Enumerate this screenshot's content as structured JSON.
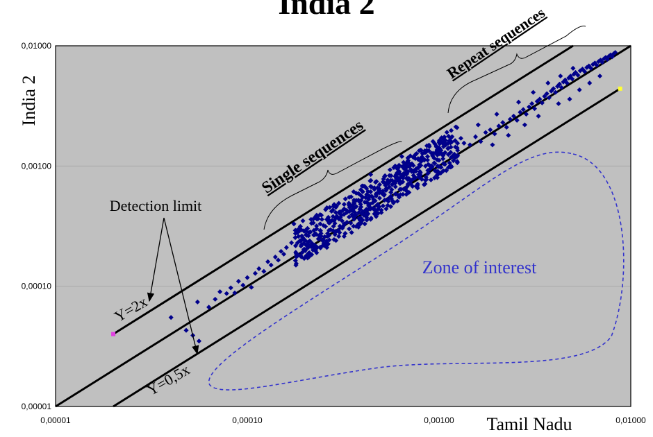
{
  "chart_data": {
    "type": "scatter",
    "title": "India 2",
    "xlabel": "Tamil Nadu",
    "ylabel": "India 2",
    "x_scale": "log",
    "y_scale": "log",
    "xlim": [
      1e-05,
      0.01
    ],
    "ylim": [
      1e-05,
      0.01
    ],
    "x_tick_values": [
      1e-05,
      0.0001,
      0.001,
      0.01
    ],
    "x_tick_labels": [
      "0,00001",
      "0,00010",
      "0,00100",
      "0,01000"
    ],
    "y_tick_values": [
      1e-05,
      0.0001,
      0.001,
      0.01
    ],
    "y_tick_labels": [
      "0,00001",
      "0,00010",
      "0,00100",
      "0,01000"
    ],
    "grid": "horizontal",
    "background_color": "#c0c0c0",
    "marker_color": "#00008b",
    "zone_color": "#3333cc",
    "lines": [
      {
        "label": "Y=2x",
        "slope": 2,
        "x_range": [
          2e-05,
          0.0066
        ]
      },
      {
        "label": "",
        "slope": 1,
        "x_range": [
          1e-05,
          0.01
        ]
      },
      {
        "label": "Y=0,5x",
        "slope": 0.5,
        "x_range": [
          2e-05,
          0.0088
        ]
      }
    ],
    "highlight_points": [
      {
        "x": 2e-05,
        "y": 4e-05,
        "color": "#e040e0"
      },
      {
        "x": 0.0088,
        "y": 0.0044,
        "color": "#ffff33"
      }
    ],
    "points_sparse": [
      [
        4e-05,
        5.5e-05
      ],
      [
        4.8e-05,
        4.3e-05
      ],
      [
        5.2e-05,
        3.9e-05
      ],
      [
        5.5e-05,
        7.4e-05
      ],
      [
        5.6e-05,
        3.5e-05
      ],
      [
        6.3e-05,
        6.7e-05
      ],
      [
        6.8e-05,
        7.8e-05
      ],
      [
        7.2e-05,
        9e-05
      ],
      [
        7.8e-05,
        8.7e-05
      ],
      [
        8.2e-05,
        9.7e-05
      ],
      [
        8.6e-05,
        8.8e-05
      ],
      [
        9e-05,
        0.00011
      ],
      [
        9.5e-05,
        0.000102
      ],
      [
        0.0001,
        0.000118
      ],
      [
        0.000105,
        9.8e-05
      ],
      [
        0.00011,
        0.000128
      ],
      [
        0.000115,
        0.00014
      ],
      [
        0.000122,
        0.000133
      ],
      [
        0.000128,
        0.00016
      ],
      [
        0.000133,
        0.00015
      ],
      [
        0.00014,
        0.000175
      ],
      [
        0.000145,
        0.000165
      ],
      [
        0.00015,
        0.000195
      ],
      [
        0.000155,
        0.000185
      ],
      [
        0.00016,
        0.00021
      ],
      [
        0.00017,
        0.00023
      ],
      [
        0.000175,
        0.00033
      ],
      [
        0.000185,
        0.00026
      ],
      [
        0.000195,
        0.00035
      ],
      [
        0.000205,
        0.0003
      ],
      [
        0.000215,
        0.00036
      ],
      [
        0.00023,
        0.00039
      ],
      [
        0.000245,
        0.00036
      ],
      [
        0.00026,
        0.00045
      ],
      [
        0.000275,
        0.00042
      ],
      [
        0.0003,
        0.00049
      ],
      [
        0.00032,
        0.00048
      ],
      [
        0.00034,
        0.00055
      ],
      [
        0.00036,
        0.00052
      ],
      [
        0.00038,
        0.00059
      ],
      [
        0.0004,
        0.00061
      ],
      [
        0.00042,
        0.00058
      ],
      [
        0.00044,
        0.00085
      ],
      [
        0.00046,
        0.00066
      ],
      [
        0.00049,
        0.0007
      ],
      [
        0.00052,
        0.00072
      ],
      [
        0.00056,
        0.00076
      ],
      [
        0.0006,
        0.0008
      ],
      [
        0.00064,
        0.00083
      ],
      [
        0.00068,
        0.00086
      ],
      [
        0.00072,
        0.0009
      ],
      [
        0.00076,
        0.00095
      ],
      [
        0.0008,
        0.00088
      ],
      [
        0.00085,
        0.001
      ],
      [
        0.0009,
        0.00095
      ],
      [
        0.00095,
        0.00105
      ],
      [
        0.00064,
        0.0012
      ],
      [
        0.0007,
        0.00105
      ],
      [
        0.00062,
        0.0009
      ],
      [
        0.00098,
        0.0008
      ],
      [
        0.00105,
        0.00125
      ],
      [
        0.00115,
        0.0013
      ],
      [
        0.00125,
        0.00135
      ],
      [
        0.00135,
        0.00155
      ],
      [
        0.00145,
        0.0015
      ],
      [
        0.00155,
        0.00175
      ],
      [
        0.00165,
        0.0016
      ],
      [
        0.00175,
        0.0019
      ],
      [
        0.00185,
        0.002
      ],
      [
        0.00195,
        0.00185
      ],
      [
        0.00205,
        0.00215
      ],
      [
        0.00215,
        0.0023
      ],
      [
        0.00225,
        0.0021
      ],
      [
        0.00235,
        0.00245
      ],
      [
        0.00245,
        0.0026
      ],
      [
        0.00255,
        0.0024
      ],
      [
        0.00265,
        0.0028
      ],
      [
        0.00275,
        0.00295
      ],
      [
        0.00285,
        0.0027
      ],
      [
        0.00295,
        0.0031
      ],
      [
        0.00305,
        0.0033
      ],
      [
        0.00315,
        0.003
      ],
      [
        0.00325,
        0.00345
      ],
      [
        0.00335,
        0.0036
      ],
      [
        0.00345,
        0.00335
      ],
      [
        0.00355,
        0.0038
      ],
      [
        0.00365,
        0.004
      ],
      [
        0.00375,
        0.0037
      ],
      [
        0.00385,
        0.0042
      ],
      [
        0.00395,
        0.0044
      ],
      [
        0.00405,
        0.0041
      ],
      [
        0.00415,
        0.0046
      ],
      [
        0.00425,
        0.0048
      ],
      [
        0.00435,
        0.0045
      ],
      [
        0.00445,
        0.005
      ],
      [
        0.00455,
        0.0052
      ],
      [
        0.00465,
        0.0049
      ],
      [
        0.00475,
        0.0054
      ],
      [
        0.00485,
        0.0056
      ],
      [
        0.00495,
        0.0053
      ],
      [
        0.00505,
        0.0058
      ],
      [
        0.00515,
        0.006
      ],
      [
        0.0053,
        0.0057
      ],
      [
        0.00545,
        0.0062
      ],
      [
        0.0056,
        0.0064
      ],
      [
        0.00575,
        0.0061
      ],
      [
        0.0059,
        0.0066
      ],
      [
        0.00605,
        0.0068
      ],
      [
        0.0062,
        0.0065
      ],
      [
        0.00635,
        0.007
      ],
      [
        0.0065,
        0.0072
      ],
      [
        0.00665,
        0.0069
      ],
      [
        0.0068,
        0.0074
      ],
      [
        0.00695,
        0.0076
      ],
      [
        0.0071,
        0.0073
      ],
      [
        0.00725,
        0.0078
      ],
      [
        0.0074,
        0.008
      ],
      [
        0.00755,
        0.0077
      ],
      [
        0.0077,
        0.0082
      ],
      [
        0.00785,
        0.0084
      ],
      [
        0.008,
        0.0081
      ],
      [
        0.00815,
        0.0086
      ],
      [
        0.0083,
        0.0088
      ],
      [
        0.0054,
        0.0043
      ],
      [
        0.0048,
        0.0036
      ],
      [
        0.0061,
        0.0049
      ],
      [
        0.0028,
        0.0022
      ],
      [
        0.0033,
        0.0026
      ],
      [
        0.0019,
        0.0015
      ],
      [
        0.0023,
        0.0018
      ],
      [
        0.0042,
        0.0033
      ],
      [
        0.0069,
        0.0056
      ],
      [
        0.0013,
        0.0017
      ],
      [
        0.0016,
        0.0022
      ],
      [
        0.002,
        0.0027
      ],
      [
        0.0026,
        0.0034
      ],
      [
        0.0031,
        0.0041
      ],
      [
        0.0037,
        0.0049
      ],
      [
        0.0043,
        0.0056
      ],
      [
        0.005,
        0.0065
      ]
    ],
    "dense_cluster": [
      [
        0.0002,
        0.00024
      ],
      [
        0.00021,
        0.00028
      ],
      [
        0.00022,
        0.0002
      ],
      [
        0.00023,
        0.0003
      ],
      [
        0.00024,
        0.00026
      ],
      [
        0.00025,
        0.00032
      ],
      [
        0.00026,
        0.00023
      ],
      [
        0.00027,
        0.00034
      ],
      [
        0.00028,
        0.00029
      ],
      [
        0.00029,
        0.00037
      ],
      [
        0.0003,
        0.00026
      ],
      [
        0.00031,
        0.00039
      ],
      [
        0.00032,
        0.00033
      ],
      [
        0.00033,
        0.00041
      ],
      [
        0.00034,
        0.0003
      ],
      [
        0.00035,
        0.00043
      ],
      [
        0.00036,
        0.00036
      ],
      [
        0.00037,
        0.00046
      ],
      [
        0.00038,
        0.00033
      ],
      [
        0.00039,
        0.00048
      ],
      [
        0.0004,
        0.0004
      ],
      [
        0.00041,
        0.0005
      ],
      [
        0.00042,
        0.00037
      ],
      [
        0.00043,
        0.00053
      ],
      [
        0.00044,
        0.00044
      ],
      [
        0.00045,
        0.00055
      ],
      [
        0.00046,
        0.0004
      ],
      [
        0.00047,
        0.00058
      ],
      [
        0.00048,
        0.00048
      ],
      [
        0.00049,
        0.0006
      ],
      [
        0.0005,
        0.00043
      ],
      [
        0.00051,
        0.00062
      ],
      [
        0.00052,
        0.00052
      ],
      [
        0.00053,
        0.00065
      ],
      [
        0.00054,
        0.00047
      ],
      [
        0.00055,
        0.00067
      ],
      [
        0.00056,
        0.00056
      ],
      [
        0.00057,
        0.0007
      ],
      [
        0.00058,
        0.0005
      ],
      [
        0.00059,
        0.00072
      ],
      [
        0.00024,
        0.00033
      ],
      [
        0.00026,
        0.00036
      ],
      [
        0.00028,
        0.00038
      ],
      [
        0.0003,
        0.00041
      ],
      [
        0.00032,
        0.00044
      ],
      [
        0.00034,
        0.00047
      ],
      [
        0.00036,
        0.0005
      ],
      [
        0.00038,
        0.00052
      ],
      [
        0.0004,
        0.00055
      ],
      [
        0.00042,
        0.00058
      ],
      [
        0.00044,
        0.00061
      ],
      [
        0.00046,
        0.00064
      ],
      [
        0.00023,
        0.00019
      ],
      [
        0.00026,
        0.00021
      ],
      [
        0.00029,
        0.00024
      ],
      [
        0.00032,
        0.00026
      ],
      [
        0.00035,
        0.00028
      ],
      [
        0.00038,
        0.00031
      ],
      [
        0.00041,
        0.00033
      ],
      [
        0.00044,
        0.00036
      ],
      [
        0.00047,
        0.00038
      ],
      [
        0.0005,
        0.00041
      ],
      [
        0.00053,
        0.00044
      ],
      [
        0.00056,
        0.00046
      ]
    ]
  },
  "annotations": {
    "single_sequences": "Single sequences",
    "repeat_sequences": "Repeat sequences",
    "detection_limit": "Detection limit",
    "y_2x": "Y=2x",
    "y_05x": "Y=0,5x",
    "zone_of_interest": "Zone of interest"
  }
}
